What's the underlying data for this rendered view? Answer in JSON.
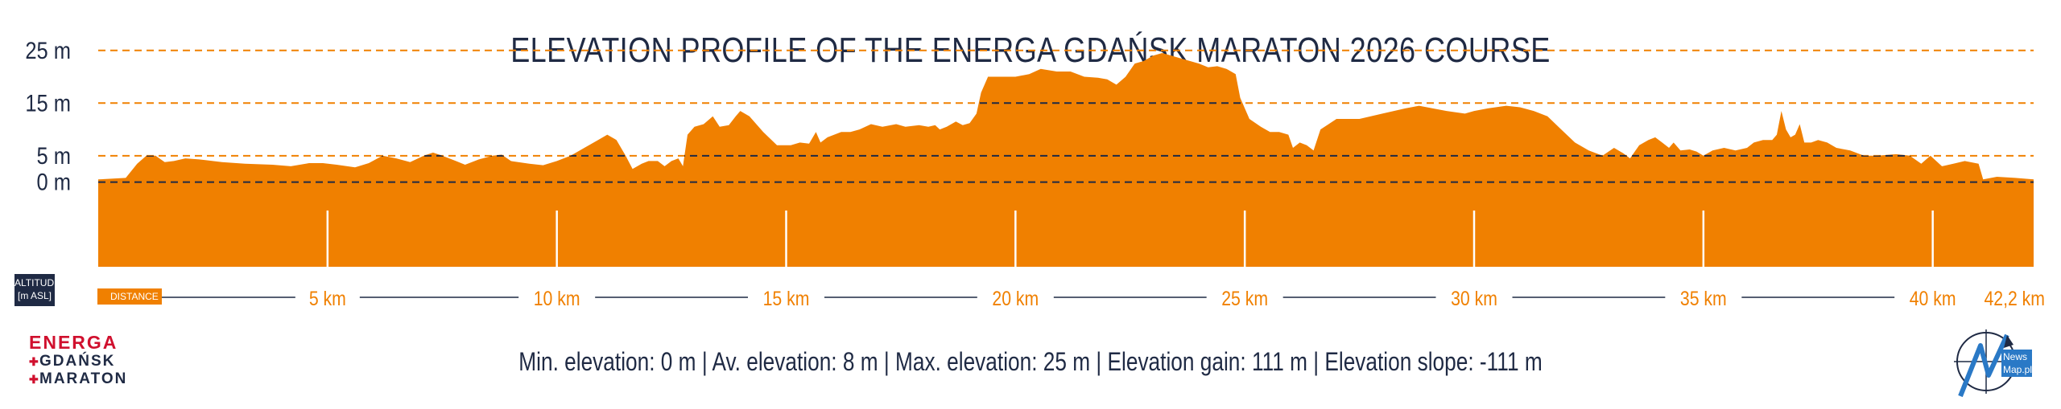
{
  "chart_data": {
    "type": "area",
    "title": "ELEVATION PROFILE OF THE ENERGA GDAŃSK MARATON 2026 COURSE",
    "x_unit": "km",
    "y_unit": "m",
    "xlim": [
      0,
      42.2
    ],
    "ylim": [
      -17,
      30
    ],
    "y_gridlines": [
      {
        "value": 25,
        "label": "25 m",
        "style": "orange-dashed"
      },
      {
        "value": 15,
        "label": "15 m",
        "style": "orange-dashed"
      },
      {
        "value": 5,
        "label": "5 m",
        "style": "orange-dashed"
      },
      {
        "value": 0,
        "label": "0 m",
        "style": "dark-dashed"
      }
    ],
    "x_ticks": [
      {
        "value": 5,
        "label": "5 km"
      },
      {
        "value": 10,
        "label": "10 km"
      },
      {
        "value": 15,
        "label": "15 km"
      },
      {
        "value": 20,
        "label": "20 km"
      },
      {
        "value": 25,
        "label": "25 km"
      },
      {
        "value": 30,
        "label": "30 km"
      },
      {
        "value": 35,
        "label": "35 km"
      },
      {
        "value": 40,
        "label": "40 km"
      },
      {
        "value": 42.2,
        "label": "42,2 km"
      }
    ],
    "series": [
      {
        "values": [
          [
            0.0,
            0.5
          ],
          [
            0.6,
            0.8
          ],
          [
            0.85,
            3.5
          ],
          [
            1.05,
            5.0
          ],
          [
            1.25,
            5.0
          ],
          [
            1.45,
            3.8
          ],
          [
            1.65,
            4.0
          ],
          [
            1.9,
            4.5
          ],
          [
            2.2,
            4.3
          ],
          [
            2.7,
            3.8
          ],
          [
            3.2,
            3.5
          ],
          [
            3.8,
            3.3
          ],
          [
            4.2,
            3.0
          ],
          [
            4.6,
            3.6
          ],
          [
            4.9,
            3.6
          ],
          [
            5.2,
            3.3
          ],
          [
            5.6,
            2.8
          ],
          [
            5.9,
            3.6
          ],
          [
            6.2,
            5.0
          ],
          [
            6.5,
            4.5
          ],
          [
            6.8,
            3.8
          ],
          [
            7.1,
            5.0
          ],
          [
            7.3,
            5.6
          ],
          [
            7.5,
            5.0
          ],
          [
            7.8,
            4.0
          ],
          [
            8.0,
            3.3
          ],
          [
            8.3,
            4.3
          ],
          [
            8.6,
            5.0
          ],
          [
            8.8,
            5.2
          ],
          [
            9.0,
            4.0
          ],
          [
            9.4,
            3.5
          ],
          [
            9.7,
            3.2
          ],
          [
            10.0,
            4.0
          ],
          [
            10.3,
            5.0
          ],
          [
            10.6,
            6.5
          ],
          [
            10.9,
            8.0
          ],
          [
            11.1,
            9.0
          ],
          [
            11.3,
            8.0
          ],
          [
            11.5,
            5.0
          ],
          [
            11.65,
            2.5
          ],
          [
            11.85,
            3.5
          ],
          [
            12.0,
            4.0
          ],
          [
            12.2,
            4.0
          ],
          [
            12.35,
            3.0
          ],
          [
            12.5,
            4.0
          ],
          [
            12.65,
            4.5
          ],
          [
            12.75,
            3.0
          ],
          [
            12.85,
            9.0
          ],
          [
            13.0,
            10.5
          ],
          [
            13.2,
            11.0
          ],
          [
            13.4,
            12.5
          ],
          [
            13.55,
            10.5
          ],
          [
            13.75,
            10.8
          ],
          [
            13.9,
            12.5
          ],
          [
            14.0,
            13.5
          ],
          [
            14.2,
            12.5
          ],
          [
            14.5,
            9.5
          ],
          [
            14.8,
            7.0
          ],
          [
            15.1,
            7.0
          ],
          [
            15.3,
            7.5
          ],
          [
            15.5,
            7.3
          ],
          [
            15.65,
            9.5
          ],
          [
            15.75,
            7.5
          ],
          [
            15.9,
            8.5
          ],
          [
            16.2,
            9.5
          ],
          [
            16.4,
            9.5
          ],
          [
            16.6,
            10.0
          ],
          [
            16.85,
            11.0
          ],
          [
            17.1,
            10.5
          ],
          [
            17.4,
            11.0
          ],
          [
            17.6,
            10.5
          ],
          [
            17.9,
            10.8
          ],
          [
            18.1,
            10.5
          ],
          [
            18.25,
            10.8
          ],
          [
            18.35,
            10.0
          ],
          [
            18.5,
            10.5
          ],
          [
            18.7,
            11.5
          ],
          [
            18.85,
            10.8
          ],
          [
            19.0,
            11.2
          ],
          [
            19.15,
            13.0
          ],
          [
            19.25,
            17.0
          ],
          [
            19.4,
            20.0
          ],
          [
            19.7,
            20.0
          ],
          [
            20.0,
            20.0
          ],
          [
            20.3,
            20.5
          ],
          [
            20.55,
            21.5
          ],
          [
            20.9,
            21.0
          ],
          [
            21.2,
            21.0
          ],
          [
            21.5,
            20.0
          ],
          [
            21.8,
            19.8
          ],
          [
            22.0,
            19.5
          ],
          [
            22.2,
            18.5
          ],
          [
            22.4,
            20.0
          ],
          [
            22.6,
            22.5
          ],
          [
            22.8,
            23.0
          ],
          [
            23.0,
            24.0
          ],
          [
            23.2,
            24.5
          ],
          [
            23.4,
            24.0
          ],
          [
            23.6,
            23.5
          ],
          [
            23.8,
            23.0
          ],
          [
            24.0,
            22.5
          ],
          [
            24.2,
            21.8
          ],
          [
            24.4,
            22.0
          ],
          [
            24.6,
            21.5
          ],
          [
            24.8,
            20.5
          ],
          [
            24.9,
            16.0
          ],
          [
            25.1,
            12.0
          ],
          [
            25.35,
            10.5
          ],
          [
            25.55,
            9.5
          ],
          [
            25.75,
            9.5
          ],
          [
            25.95,
            9.0
          ],
          [
            26.05,
            6.5
          ],
          [
            26.2,
            7.5
          ],
          [
            26.35,
            7.0
          ],
          [
            26.5,
            6.0
          ],
          [
            26.65,
            10.0
          ],
          [
            27.0,
            12.0
          ],
          [
            27.5,
            12.0
          ],
          [
            28.0,
            13.0
          ],
          [
            28.5,
            14.0
          ],
          [
            28.8,
            14.5
          ],
          [
            29.1,
            14.0
          ],
          [
            29.4,
            13.5
          ],
          [
            29.8,
            13.0
          ],
          [
            30.0,
            13.5
          ],
          [
            30.3,
            14.0
          ],
          [
            30.7,
            14.5
          ],
          [
            31.0,
            14.2
          ],
          [
            31.3,
            13.5
          ],
          [
            31.6,
            12.5
          ],
          [
            31.9,
            10.0
          ],
          [
            32.2,
            7.5
          ],
          [
            32.5,
            6.0
          ],
          [
            32.8,
            5.0
          ],
          [
            33.05,
            6.5
          ],
          [
            33.25,
            5.5
          ],
          [
            33.4,
            4.5
          ],
          [
            33.6,
            7.0
          ],
          [
            33.8,
            8.0
          ],
          [
            33.95,
            8.5
          ],
          [
            34.1,
            7.5
          ],
          [
            34.25,
            6.5
          ],
          [
            34.35,
            7.5
          ],
          [
            34.5,
            6.0
          ],
          [
            34.7,
            6.2
          ],
          [
            34.85,
            5.8
          ],
          [
            35.0,
            5.0
          ],
          [
            35.2,
            6.0
          ],
          [
            35.45,
            6.5
          ],
          [
            35.7,
            6.0
          ],
          [
            35.95,
            6.5
          ],
          [
            36.1,
            7.5
          ],
          [
            36.3,
            8.0
          ],
          [
            36.5,
            8.0
          ],
          [
            36.6,
            9.0
          ],
          [
            36.7,
            13.5
          ],
          [
            36.8,
            10.0
          ],
          [
            36.9,
            8.5
          ],
          [
            37.0,
            9.0
          ],
          [
            37.1,
            11.0
          ],
          [
            37.2,
            7.5
          ],
          [
            37.35,
            7.5
          ],
          [
            37.5,
            8.0
          ],
          [
            37.7,
            7.5
          ],
          [
            37.9,
            6.5
          ],
          [
            38.2,
            6.0
          ],
          [
            38.5,
            5.0
          ],
          [
            38.8,
            5.0
          ],
          [
            39.2,
            5.3
          ],
          [
            39.5,
            5.0
          ],
          [
            39.75,
            3.5
          ],
          [
            39.95,
            5.0
          ],
          [
            40.2,
            3.0
          ],
          [
            40.45,
            3.5
          ],
          [
            40.7,
            4.0
          ],
          [
            41.0,
            3.5
          ],
          [
            41.1,
            0.5
          ],
          [
            41.4,
            1.0
          ],
          [
            41.8,
            0.8
          ],
          [
            42.2,
            0.5
          ]
        ]
      }
    ],
    "fill_color": "#f08000",
    "grid_color": "#f08000",
    "zero_line_color": "#1f2a44"
  },
  "axis_badges": {
    "altitude_line1": "ALTITUDE",
    "altitude_line2": "[m ASL]",
    "distance": "DISTANCE"
  },
  "stats_text": "Min. elevation: 0 m | Av. elevation: 8 m | Max. elevation: 25 m | Elevation gain: 111 m | Elevation slope: -111 m",
  "logo_left": {
    "line1": "ENERGA",
    "line2": "GDAŃSK",
    "line3": "MARATON"
  },
  "logo_right": {
    "line1": "News",
    "line2": "Map.pl"
  },
  "colors": {
    "navy": "#1f2a44",
    "orange": "#f08000",
    "red": "#d0102e",
    "blue": "#2a79c6"
  }
}
